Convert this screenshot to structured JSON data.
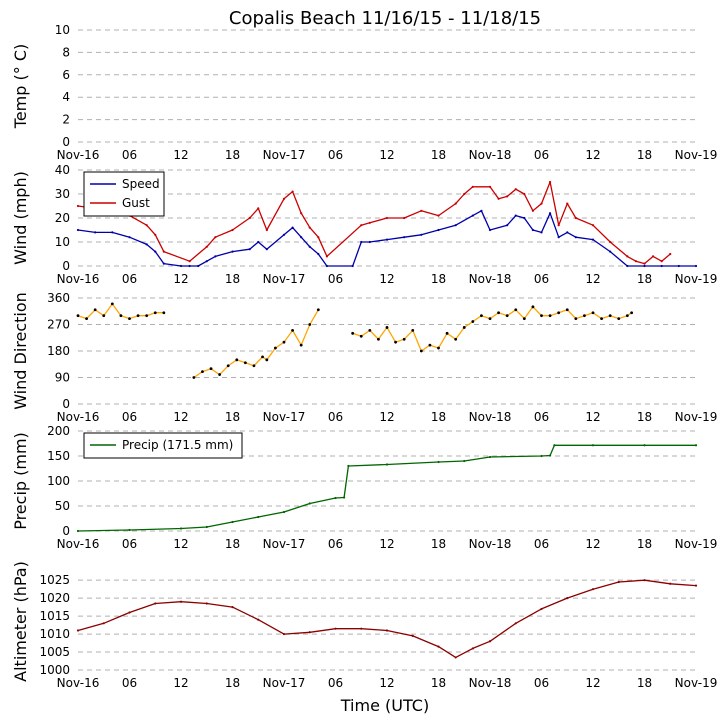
{
  "title": "Copalis Beach 11/16/15 - 11/18/15",
  "xlabel": "Time (UTC)",
  "x_tick_labels": [
    "Nov-16",
    "06",
    "12",
    "18",
    "Nov-17",
    "06",
    "12",
    "18",
    "Nov-18",
    "06",
    "12",
    "18",
    "Nov-19"
  ],
  "x_range_hours": [
    0,
    72
  ],
  "colors": {
    "speed": "#0000aa",
    "gust": "#cc0000",
    "gust_tint": "#5a0000",
    "direction": "#ffa500",
    "direction_marker": "#000000",
    "precip": "#006600",
    "altimeter": "#8b0000",
    "grid": "#b0b0b0"
  },
  "chart_data": [
    {
      "type": "line",
      "name": "temp",
      "ylabel": "Temp (° C)",
      "ylim": [
        0,
        10
      ],
      "y_ticks": [
        0,
        2,
        4,
        6,
        8,
        10
      ],
      "y_tick_labels": [
        "0",
        "2",
        "4",
        "6",
        "8",
        "10"
      ],
      "series": []
    },
    {
      "type": "line",
      "name": "wind",
      "ylabel": "Wind (mph)",
      "ylim": [
        0,
        40
      ],
      "y_ticks": [
        0,
        10,
        20,
        30,
        40
      ],
      "y_tick_labels": [
        "0",
        "10",
        "20",
        "30",
        "40"
      ],
      "legend": [
        "Speed",
        "Gust"
      ],
      "series": [
        {
          "name": "Speed",
          "x": [
            0,
            2,
            4,
            6,
            8,
            9,
            10,
            12,
            13,
            14,
            15,
            16,
            18,
            20,
            21,
            22,
            24,
            25,
            26,
            27,
            28,
            29,
            32,
            33,
            34,
            36,
            38,
            40,
            42,
            44,
            46,
            47,
            48,
            50,
            51,
            52,
            53,
            54,
            55,
            56,
            57,
            58,
            60,
            62,
            64,
            66,
            68,
            70,
            72
          ],
          "values": [
            15,
            14,
            14,
            12,
            9,
            6,
            1,
            0,
            0,
            0,
            2,
            4,
            6,
            7,
            10,
            7,
            13,
            16,
            12,
            8,
            5,
            0,
            0,
            10,
            10,
            11,
            12,
            13,
            15,
            17,
            21,
            23,
            15,
            17,
            21,
            20,
            15,
            14,
            22,
            12,
            14,
            12,
            11,
            6,
            0,
            0,
            0,
            0,
            0
          ]
        },
        {
          "name": "Gust",
          "x": [
            0,
            2,
            4,
            6,
            8,
            9,
            10,
            13,
            15,
            16,
            18,
            20,
            21,
            22,
            24,
            25,
            26,
            27,
            28,
            29,
            33,
            34,
            36,
            38,
            40,
            42,
            44,
            45,
            46,
            48,
            49,
            50,
            51,
            52,
            53,
            54,
            55,
            56,
            57,
            58,
            60,
            62,
            64,
            65,
            66,
            67,
            68,
            69,
            70
          ],
          "values": [
            25,
            24,
            23,
            21,
            17,
            13,
            6,
            2,
            8,
            12,
            15,
            20,
            24,
            15,
            28,
            31,
            22,
            16,
            12,
            4,
            17,
            18,
            20,
            20,
            23,
            21,
            26,
            30,
            33,
            33,
            28,
            29,
            32,
            30,
            23,
            26,
            35,
            17,
            26,
            20,
            17,
            10,
            4,
            2,
            1,
            4,
            2,
            5,
            null
          ]
        }
      ]
    },
    {
      "type": "scatter",
      "name": "wind_direction",
      "ylabel": "Wind Direction",
      "ylim": [
        0,
        360
      ],
      "y_ticks": [
        0,
        90,
        180,
        270,
        360
      ],
      "y_tick_labels": [
        "0",
        "90",
        "180",
        "270",
        "360"
      ],
      "series": [
        {
          "name": "Direction",
          "x": [
            0,
            1,
            2,
            3,
            4,
            5,
            6,
            7,
            8,
            9,
            10,
            13.5,
            14.5,
            15.5,
            16.5,
            17.5,
            18.5,
            19.5,
            20.5,
            21.5,
            22,
            23,
            24,
            25,
            26,
            27,
            28,
            32,
            33,
            34,
            35,
            36,
            37,
            38,
            39,
            40,
            41,
            42,
            43,
            44,
            45,
            46,
            47,
            48,
            49,
            50,
            51,
            52,
            53,
            54,
            55,
            56,
            57,
            58,
            59,
            60,
            61,
            62,
            63,
            64,
            64.5
          ],
          "values": [
            300,
            290,
            320,
            300,
            340,
            300,
            290,
            300,
            300,
            310,
            310,
            90,
            110,
            120,
            100,
            130,
            150,
            140,
            130,
            160,
            150,
            190,
            210,
            250,
            200,
            270,
            320,
            240,
            230,
            250,
            220,
            260,
            210,
            220,
            250,
            180,
            200,
            190,
            240,
            220,
            260,
            280,
            300,
            290,
            310,
            300,
            320,
            290,
            330,
            300,
            300,
            310,
            320,
            290,
            300,
            310,
            290,
            300,
            290,
            300,
            310
          ]
        }
      ]
    },
    {
      "type": "line",
      "name": "precip",
      "ylabel": "Precip (mm)",
      "ylim": [
        0,
        200
      ],
      "y_ticks": [
        0,
        50,
        100,
        150,
        200
      ],
      "y_tick_labels": [
        "0",
        "50",
        "100",
        "150",
        "200"
      ],
      "legend": [
        "Precip (171.5 mm)"
      ],
      "series": [
        {
          "name": "Precip (171.5 mm)",
          "x": [
            0,
            6,
            12,
            15,
            18,
            21,
            24,
            27,
            30,
            31,
            31.5,
            36,
            42,
            45,
            48,
            54,
            55,
            55.5,
            60,
            66,
            72
          ],
          "values": [
            0,
            2,
            5,
            8,
            18,
            28,
            38,
            55,
            66,
            67,
            130,
            133,
            138,
            140,
            148,
            150,
            151,
            171.5,
            171.5,
            171.5,
            171.5
          ]
        }
      ]
    },
    {
      "type": "line",
      "name": "altimeter",
      "ylabel": "Altimeter (hPa)",
      "ylim": [
        1000,
        1027
      ],
      "y_ticks": [
        1000,
        1005,
        1010,
        1015,
        1020,
        1025
      ],
      "y_tick_labels": [
        "1000",
        "1005",
        "1010",
        "1015",
        "1020",
        "1025"
      ],
      "series": [
        {
          "name": "Altimeter",
          "x": [
            0,
            3,
            6,
            9,
            12,
            15,
            18,
            21,
            24,
            27,
            30,
            33,
            36,
            39,
            42,
            44,
            46,
            48,
            51,
            54,
            57,
            60,
            63,
            66,
            69,
            72
          ],
          "values": [
            1011,
            1013,
            1016,
            1018.5,
            1019,
            1018.5,
            1017.5,
            1014,
            1010,
            1010.5,
            1011.5,
            1011.5,
            1011,
            1009.5,
            1006.5,
            1003.5,
            1006,
            1008,
            1013,
            1017,
            1020,
            1022.5,
            1024.5,
            1025,
            1024,
            1023.5
          ]
        }
      ]
    }
  ]
}
